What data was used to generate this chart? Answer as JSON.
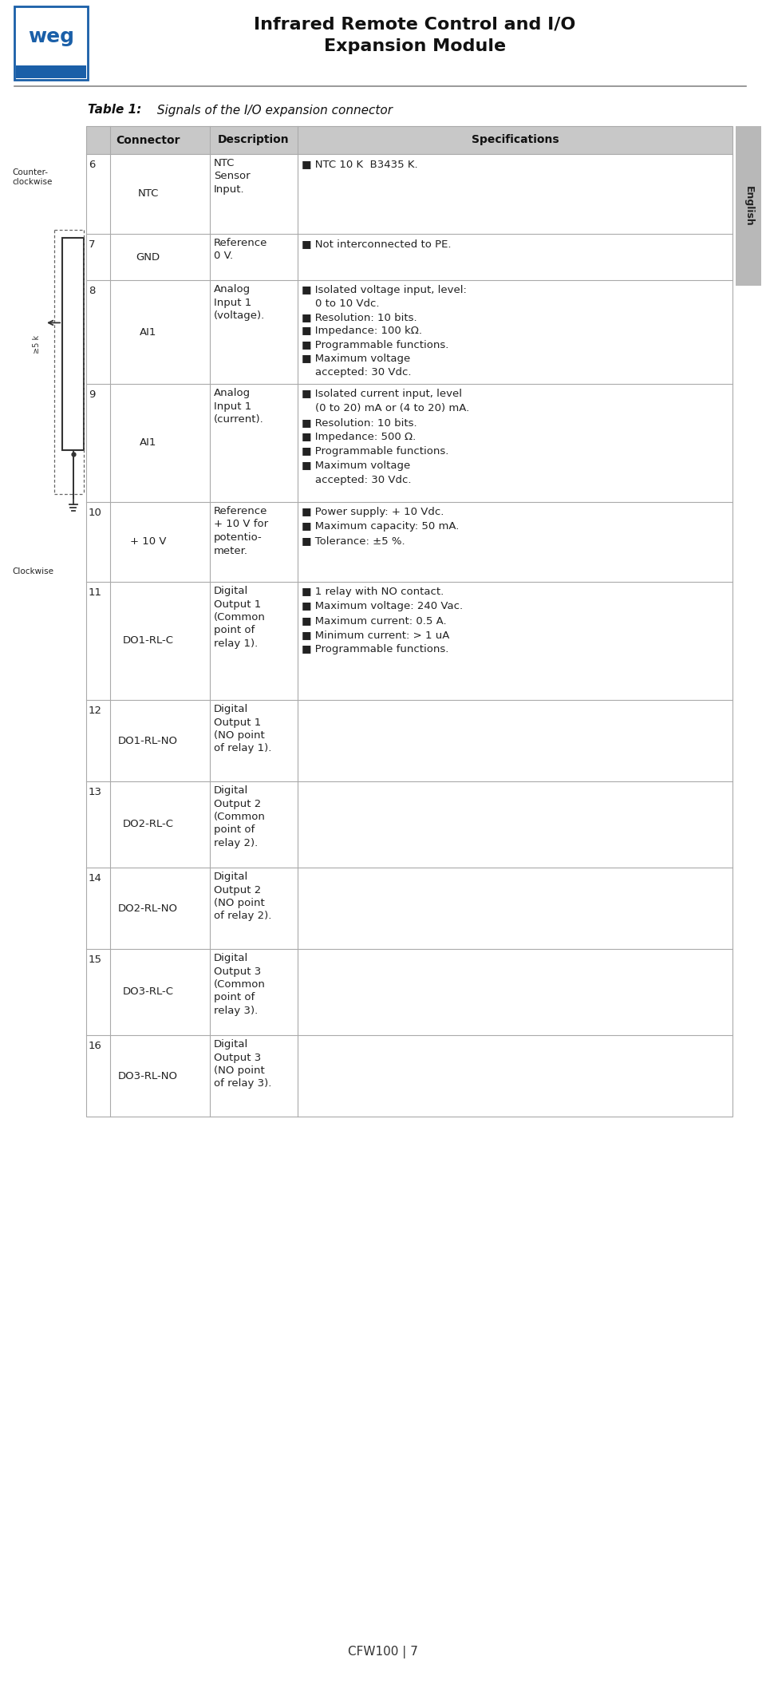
{
  "title_line1": "Infrared Remote Control and I/O",
  "title_line2": "Expansion Module",
  "table_title_bold": "Table 1:",
  "table_title_italic": " Signals of the I/O expansion connector",
  "headers": [
    "Connector",
    "Description",
    "Specifications"
  ],
  "rows": [
    {
      "num": "6",
      "connector": "NTC",
      "description": "NTC\nSensor\nInput.",
      "specs": [
        "NTC 10 K  B3435 K."
      ],
      "bullet": false
    },
    {
      "num": "7",
      "connector": "GND",
      "description": "Reference\n0 V.",
      "specs": [
        "Not interconnected to PE."
      ],
      "bullet": false
    },
    {
      "num": "8",
      "connector": "AI1",
      "description": "Analog\nInput 1\n(voltage).",
      "specs": [
        "Isolated voltage input, level:\n  0 to 10 Vdc.",
        "Resolution: 10 bits.",
        "Impedance: 100 kΩ.",
        "Programmable functions.",
        "Maximum voltage\n  accepted: 30 Vdc."
      ],
      "bullet": true
    },
    {
      "num": "9",
      "connector": "AI1",
      "description": "Analog\nInput 1\n(current).",
      "specs": [
        "Isolated current input, level\n  (0 to 20) mA or (4 to 20) mA.",
        "Resolution: 10 bits.",
        "Impedance: 500 Ω.",
        "Programmable functions.",
        "Maximum voltage\n  accepted: 30 Vdc."
      ],
      "bullet": true
    },
    {
      "num": "10",
      "connector": "+ 10 V",
      "description": "Reference\n+ 10 V for\npotentio-\nmeter.",
      "specs": [
        "Power supply: + 10 Vdc.",
        "Maximum capacity: 50 mA.",
        "Tolerance: ±5 %."
      ],
      "bullet": true
    },
    {
      "num": "11",
      "connector": "DO1-RL-C",
      "description": "Digital\nOutput 1\n(Common\npoint of\nrelay 1).",
      "specs": [
        "1 relay with NO contact.",
        "Maximum voltage: 240 Vac.",
        "Maximum current: 0.5 A.",
        "Minimum current: > 1 uA",
        "Programmable functions."
      ],
      "bullet": true
    },
    {
      "num": "12",
      "connector": "DO1-RL-NO",
      "description": "Digital\nOutput 1\n(NO point\nof relay 1).",
      "specs": [],
      "bullet": false
    },
    {
      "num": "13",
      "connector": "DO2-RL-C",
      "description": "Digital\nOutput 2\n(Common\npoint of\nrelay 2).",
      "specs": [],
      "bullet": false
    },
    {
      "num": "14",
      "connector": "DO2-RL-NO",
      "description": "Digital\nOutput 2\n(NO point\nof relay 2).",
      "specs": [],
      "bullet": false
    },
    {
      "num": "15",
      "connector": "DO3-RL-C",
      "description": "Digital\nOutput 3\n(Common\npoint of\nrelay 3).",
      "specs": [],
      "bullet": false
    },
    {
      "num": "16",
      "connector": "DO3-RL-NO",
      "description": "Digital\nOutput 3\n(NO point\nof relay 3).",
      "specs": [],
      "bullet": false
    }
  ],
  "footer_text": "CFW100 | 7",
  "sidebar_text": "English",
  "bg_color": "#ffffff",
  "header_bg": "#c8c8c8",
  "grid_color": "#aaaaaa",
  "text_color": "#222222",
  "bullet_color": "#444444",
  "logo_border_color": "#1a5fa8",
  "logo_fill_color": "#1a5fa8",
  "hr_color": "#888888"
}
